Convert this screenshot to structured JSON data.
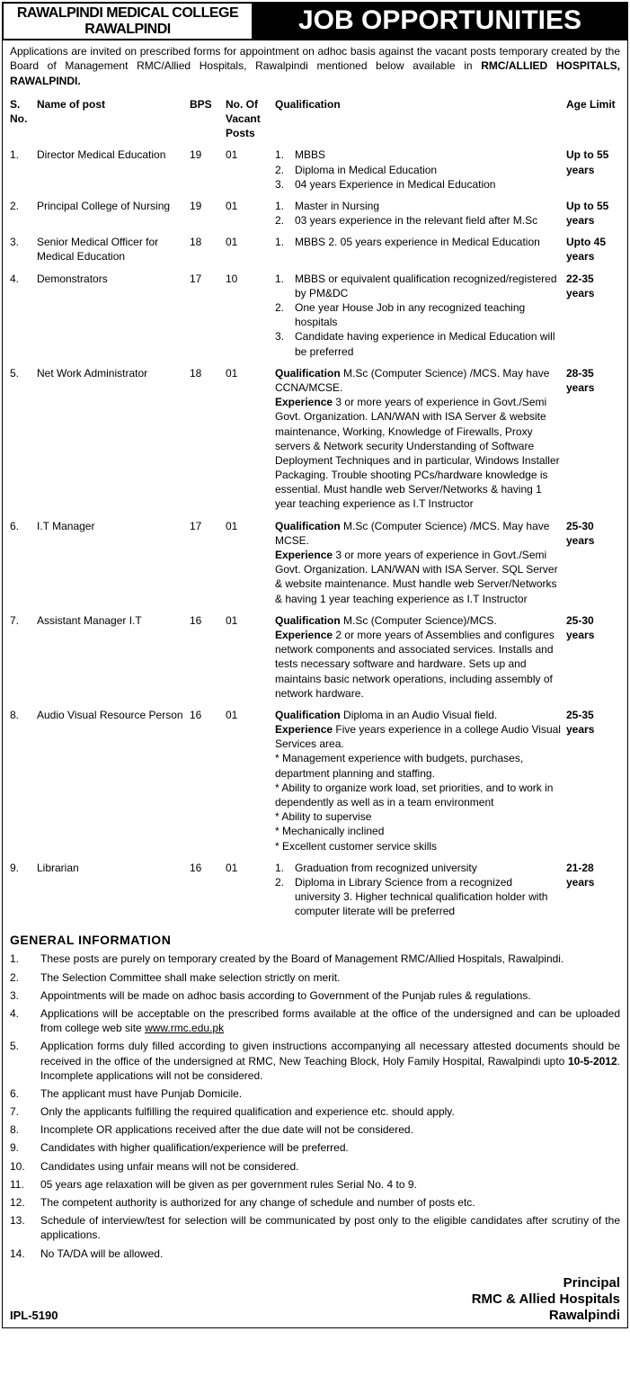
{
  "header": {
    "left_line1": "RAWALPINDI MEDICAL COLLEGE",
    "left_line2": "RAWALPINDI",
    "right": "JOB OPPORTUNITIES"
  },
  "intro": {
    "text": "Applications are invited on prescribed forms for appointment on adhoc basis against the vacant posts temporary created by the Board of Management RMC/Allied Hospitals, Rawalpindi mentioned below available in ",
    "bold": "RMC/ALLIED HOSPITALS, RAWALPINDI."
  },
  "columns": {
    "sno": "S. No.",
    "name": "Name of post",
    "bps": "BPS",
    "vacant": "No. Of Vacant Posts",
    "qual": "Qualification",
    "age": "Age Limit"
  },
  "rows": [
    {
      "sno": "1.",
      "name": "Director Medical Education",
      "bps": "19",
      "vacant": "01",
      "qual_list": [
        {
          "n": "1.",
          "t": "MBBS"
        },
        {
          "n": "2.",
          "t": "Diploma in Medical Education"
        },
        {
          "n": "3.",
          "t": "04 years Experience in Medical Education"
        }
      ],
      "age": "Up to 55 years"
    },
    {
      "sno": "2.",
      "name": "Principal College of Nursing",
      "bps": "19",
      "vacant": "01",
      "qual_list": [
        {
          "n": "1.",
          "t": "Master in Nursing"
        },
        {
          "n": "2.",
          "t": "03 years experience in the relevant field after M.Sc"
        }
      ],
      "age": "Up to 55 years"
    },
    {
      "sno": "3.",
      "name": "Senior Medical Officer for Medical Education",
      "bps": "18",
      "vacant": "01",
      "qual_list": [
        {
          "n": "1.",
          "t": "MBBS 2. 05 years experience in Medical Education"
        }
      ],
      "age": "Upto 45 years"
    },
    {
      "sno": "4.",
      "name": "Demonstrators",
      "bps": "17",
      "vacant": "10",
      "qual_list": [
        {
          "n": "1.",
          "t": "MBBS or equivalent qualification recognized/registered by PM&DC"
        },
        {
          "n": "2.",
          "t": "One year House Job in any recognized teaching hospitals"
        },
        {
          "n": "3.",
          "t": "Candidate having experience in Medical Education will be preferred"
        }
      ],
      "age": "22-35 years"
    },
    {
      "sno": "5.",
      "name": "Net Work Administrator",
      "bps": "18",
      "vacant": "01",
      "qual_html": "<b>Qualification</b> M.Sc (Computer Science) /MCS. May have CCNA/MCSE.<br><b>Experience</b> 3 or more years of experience in Govt./Semi Govt. Organization. LAN/WAN with ISA Server & website maintenance, Working, Knowledge of Firewalls, Proxy servers & Network security Understanding of Software Deployment Techniques and in particular, Windows Installer Packaging. Trouble shooting PCs/hardware knowledge is essential. Must handle web Server/Networks & having 1 year teaching experience as I.T Instructor",
      "age": "28-35 years"
    },
    {
      "sno": "6.",
      "name": "I.T Manager",
      "bps": "17",
      "vacant": "01",
      "qual_html": "<b>Qualification</b> M.Sc (Computer Science) /MCS. May have MCSE.<br><b>Experience</b> 3 or more years of experience in Govt./Semi Govt. Organization. LAN/WAN with ISA Server. SQL Server & website maintenance. Must handle web Server/Networks & having 1 year teaching experience as I.T Instructor",
      "age": "25-30 years"
    },
    {
      "sno": "7.",
      "name": "Assistant Manager I.T",
      "bps": "16",
      "vacant": "01",
      "qual_html": "<b>Qualification</b> M.Sc (Computer Science)/MCS.<br><b>Experience</b> 2 or more years of Assemblies and configures network components and associated services. Installs and tests necessary software and hardware. Sets up and maintains basic network operations, including assembly of network hardware.",
      "age": "25-30 years"
    },
    {
      "sno": "8.",
      "name": "Audio Visual Resource Person",
      "bps": "16",
      "vacant": "01",
      "qual_html": "<b>Qualification</b> Diploma in an Audio Visual field.<br><b>Experience</b> Five years experience in a college Audio Visual Services area.<br>* Management experience with budgets, purchases, department planning and staffing.<br>* Ability to organize work load, set priorities, and to work in dependently as well as in a team environment<br>* Ability to supervise<br>* Mechanically inclined<br>* Excellent customer service skills",
      "age": "25-35 years"
    },
    {
      "sno": "9.",
      "name": "Librarian",
      "bps": "16",
      "vacant": "01",
      "qual_list": [
        {
          "n": "1.",
          "t": "Graduation from recognized university"
        },
        {
          "n": "2.",
          "t": "Diploma in Library Science from a recognized university 3. Higher technical qualification holder with computer literate will be preferred"
        }
      ],
      "age": "21-28 years"
    }
  ],
  "general_title": "GENERAL INFORMATION",
  "general": [
    {
      "n": "1.",
      "t": "These posts are purely on temporary created by the Board of Management RMC/Allied Hospitals, Rawalpindi."
    },
    {
      "n": "2.",
      "t": "The Selection Committee shall make selection strictly on merit."
    },
    {
      "n": "3.",
      "t": "Appointments will be made on adhoc basis according to Government of the Punjab rules & regulations."
    },
    {
      "n": "4.",
      "t": "Applications will be acceptable on the prescribed forms available at the office of the undersigned and can be uploaded from college web site ",
      "link": "www.rmc.edu.pk"
    },
    {
      "n": "5.",
      "t": "Application forms duly filled according to given instructions accompanying all necessary attested documents should be received in the office of the undersigned at RMC, New Teaching Block, Holy Family Hospital, Rawalpindi upto ",
      "bold": "10-5-2012",
      "tail": ". Incomplete applications will not be considered."
    },
    {
      "n": "6.",
      "t": "The applicant must have Punjab Domicile."
    },
    {
      "n": "7.",
      "t": "Only the applicants fulfilling the required qualification and experience etc. should apply."
    },
    {
      "n": "8.",
      "t": "Incomplete OR applications received after the due date will not be considered."
    },
    {
      "n": "9.",
      "t": "Candidates with higher qualification/experience will be preferred."
    },
    {
      "n": "10.",
      "t": "Candidates using unfair means will not be considered."
    },
    {
      "n": "11.",
      "t": "05 years age relaxation will be given as per government rules Serial No. 4 to 9."
    },
    {
      "n": "12.",
      "t": "The competent authority is authorized for any change of schedule and number of posts etc."
    },
    {
      "n": "13.",
      "t": "Schedule of interview/test for selection will be communicated by  post only to the eligible candidates after scrutiny of the applications."
    },
    {
      "n": "14.",
      "t": "No TA/DA will be allowed."
    }
  ],
  "footer": {
    "ipl": "IPL-5190",
    "sign1": "Principal",
    "sign2": "RMC & Allied Hospitals",
    "sign3": "Rawalpindi"
  }
}
